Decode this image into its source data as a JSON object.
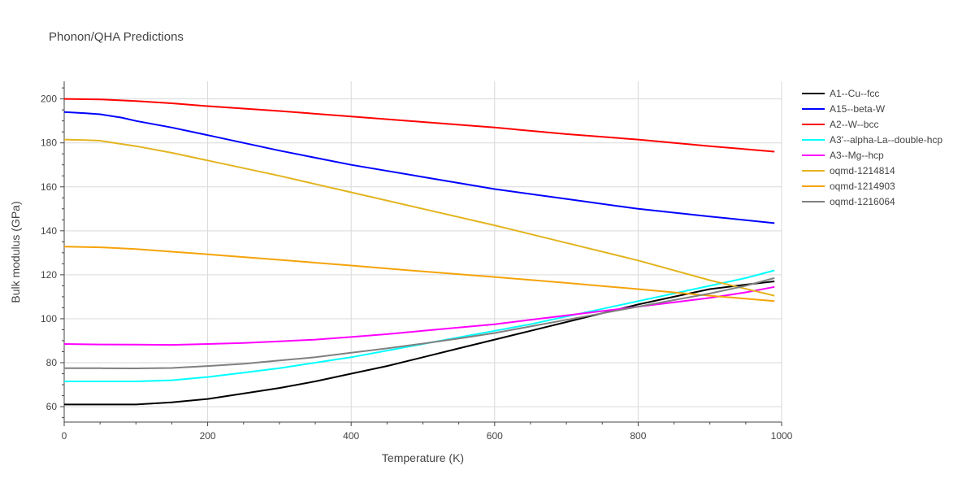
{
  "chart_data": {
    "type": "line",
    "title": "Phonon/QHA Predictions",
    "xlabel": "Temperature (K)",
    "ylabel": "Bulk modulus (GPa)",
    "xlim": [
      0,
      1000
    ],
    "ylim": [
      53,
      208
    ],
    "x_ticks": [
      0,
      200,
      400,
      600,
      800,
      1000
    ],
    "y_ticks": [
      60,
      80,
      100,
      120,
      140,
      160,
      180,
      200
    ],
    "grid": true,
    "legend_position": "right",
    "series": [
      {
        "name": "A1--Cu--fcc",
        "color": "#000000",
        "x": [
          0,
          50,
          100,
          150,
          200,
          250,
          300,
          350,
          400,
          450,
          500,
          550,
          600,
          650,
          700,
          750,
          800,
          850,
          900,
          950,
          990
        ],
        "y": [
          61,
          61,
          61,
          62,
          63.5,
          66,
          68.5,
          71.5,
          75,
          78.5,
          82.5,
          86.5,
          90.5,
          94.5,
          98.5,
          102.5,
          106.5,
          110,
          113.5,
          115.5,
          117
        ]
      },
      {
        "name": "A15--beta-W",
        "color": "#0000ff",
        "x": [
          0,
          30,
          50,
          80,
          100,
          150,
          200,
          300,
          400,
          500,
          600,
          700,
          800,
          900,
          990
        ],
        "y": [
          194,
          193.5,
          193,
          191.5,
          190,
          187,
          183.5,
          176.5,
          170,
          164.5,
          159,
          154.5,
          150,
          146.5,
          143.5
        ]
      },
      {
        "name": "A2--W--bcc",
        "color": "#ff0000",
        "x": [
          0,
          50,
          100,
          150,
          200,
          300,
          400,
          500,
          600,
          700,
          800,
          900,
          990
        ],
        "y": [
          200,
          199.8,
          199,
          198,
          196.7,
          194.5,
          192,
          189.5,
          187,
          184,
          181.5,
          178.5,
          176
        ]
      },
      {
        "name": "A3'--alpha-La--double-hcp",
        "color": "#00ffff",
        "x": [
          0,
          100,
          150,
          200,
          250,
          300,
          350,
          400,
          450,
          500,
          550,
          600,
          650,
          700,
          750,
          800,
          850,
          900,
          950,
          990
        ],
        "y": [
          71.5,
          71.5,
          72,
          73.5,
          75.5,
          77.5,
          80,
          82.5,
          85.5,
          88.5,
          91.5,
          94.5,
          97.5,
          101,
          104.5,
          108,
          111.5,
          115,
          118.5,
          122
        ]
      },
      {
        "name": "A3--Mg--hcp",
        "color": "#ff00ff",
        "x": [
          0,
          50,
          100,
          150,
          200,
          250,
          300,
          350,
          400,
          450,
          500,
          550,
          600,
          650,
          700,
          750,
          800,
          850,
          900,
          950,
          990
        ],
        "y": [
          88.5,
          88.3,
          88.2,
          88.1,
          88.5,
          89,
          89.7,
          90.5,
          91.7,
          93,
          94.5,
          96,
          97.5,
          99.5,
          101.5,
          103.5,
          105.5,
          107.5,
          109.5,
          112,
          114.5
        ]
      },
      {
        "name": "oqmd-1214814",
        "color": "#e3b420",
        "x": [
          0,
          30,
          50,
          70,
          100,
          150,
          200,
          300,
          400,
          500,
          600,
          700,
          800,
          900,
          990
        ],
        "y": [
          181.5,
          181.3,
          181,
          180,
          178.5,
          175.5,
          172,
          165,
          157.5,
          150,
          142.5,
          134.5,
          126.5,
          117.5,
          110.5
        ]
      },
      {
        "name": "oqmd-1214903",
        "color": "#f5a30a",
        "x": [
          0,
          50,
          100,
          150,
          200,
          300,
          400,
          500,
          600,
          700,
          800,
          900,
          990
        ],
        "y": [
          132.8,
          132.5,
          131.7,
          130.5,
          129.3,
          126.8,
          124.2,
          121.5,
          119,
          116.3,
          113.5,
          110.5,
          108
        ]
      },
      {
        "name": "oqmd-1216064",
        "color": "#808080",
        "x": [
          0,
          50,
          100,
          150,
          200,
          250,
          300,
          350,
          400,
          450,
          500,
          550,
          600,
          650,
          700,
          750,
          800,
          850,
          900,
          950,
          990
        ],
        "y": [
          77.5,
          77.5,
          77.4,
          77.6,
          78.5,
          79.5,
          81,
          82.5,
          84.5,
          86.5,
          88.7,
          91,
          93.5,
          96.5,
          99.5,
          102.5,
          105.5,
          108.5,
          111.5,
          115,
          118.5
        ]
      }
    ]
  }
}
